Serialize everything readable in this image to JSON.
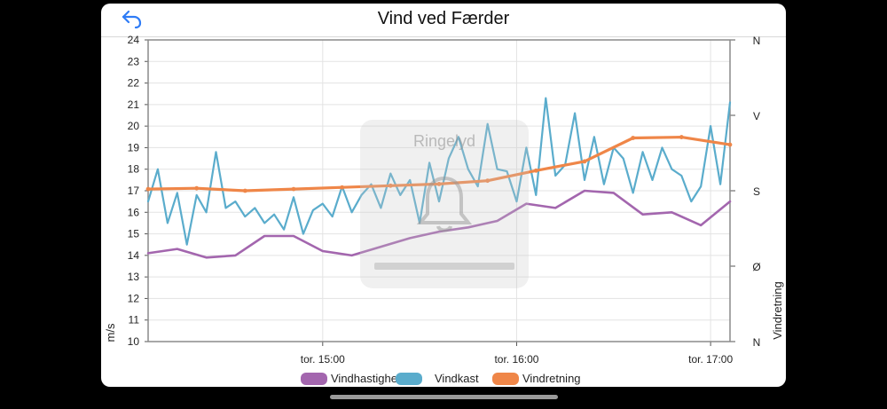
{
  "header": {
    "title": "Vind ved Færder"
  },
  "overlay": {
    "label": "Ringelyd"
  },
  "colors": {
    "speed": "#a366ae",
    "gust": "#5aaccc",
    "direction": "#ef8648",
    "grid": "#e3e3e3",
    "axis": "#555555"
  },
  "chart_data": {
    "type": "line",
    "title": "Vind ved Færder",
    "ylabel": "m/s",
    "ylabel_right": "Vindretning",
    "ylim": [
      10,
      24
    ],
    "yticks": [
      "10",
      "11",
      "12",
      "13",
      "14",
      "15",
      "16",
      "17",
      "18",
      "19",
      "20",
      "21",
      "22",
      "23",
      "24"
    ],
    "right_ticks": [
      "N",
      "Ø",
      "S",
      "V",
      "N"
    ],
    "right_lim": [
      0,
      360
    ],
    "xlim": [
      "14:06",
      "17:06"
    ],
    "xticks": [
      {
        "time": "15:00",
        "label": "tor. 15:00"
      },
      {
        "time": "16:00",
        "label": "tor. 16:00"
      },
      {
        "time": "17:00",
        "label": "tor. 17:00"
      }
    ],
    "legend": {
      "placement": "bottom-center"
    },
    "series": [
      {
        "name": "Vindhastighet",
        "axis": "left",
        "x": [
          "14:06",
          "14:15",
          "14:24",
          "14:33",
          "14:42",
          "14:51",
          "15:00",
          "15:09",
          "15:18",
          "15:27",
          "15:36",
          "15:45",
          "15:54",
          "16:03",
          "16:12",
          "16:21",
          "16:30",
          "16:39",
          "16:48",
          "16:57",
          "17:06"
        ],
        "values": [
          14.1,
          14.3,
          13.9,
          14.0,
          14.9,
          14.9,
          14.2,
          14.0,
          14.4,
          14.8,
          15.1,
          15.3,
          15.6,
          16.4,
          16.2,
          17.0,
          16.9,
          15.9,
          16.0,
          15.4,
          16.5
        ]
      },
      {
        "name": "Vindkast",
        "axis": "left",
        "x": [
          "14:06",
          "14:09",
          "14:12",
          "14:15",
          "14:18",
          "14:21",
          "14:24",
          "14:27",
          "14:30",
          "14:33",
          "14:36",
          "14:39",
          "14:42",
          "14:45",
          "14:48",
          "14:51",
          "14:54",
          "14:57",
          "15:00",
          "15:03",
          "15:06",
          "15:09",
          "15:12",
          "15:15",
          "15:18",
          "15:21",
          "15:24",
          "15:27",
          "15:30",
          "15:33",
          "15:36",
          "15:39",
          "15:42",
          "15:45",
          "15:48",
          "15:51",
          "15:54",
          "15:57",
          "16:00",
          "16:03",
          "16:06",
          "16:09",
          "16:12",
          "16:15",
          "16:18",
          "16:21",
          "16:24",
          "16:27",
          "16:30",
          "16:33",
          "16:36",
          "16:39",
          "16:42",
          "16:45",
          "16:48",
          "16:51",
          "16:54",
          "16:57",
          "17:00",
          "17:03",
          "17:06"
        ],
        "values": [
          16.5,
          18.0,
          15.5,
          16.9,
          14.5,
          16.8,
          16.0,
          18.8,
          16.2,
          16.5,
          15.8,
          16.2,
          15.5,
          15.9,
          15.2,
          16.7,
          15.0,
          16.1,
          16.4,
          15.8,
          17.2,
          16.0,
          16.8,
          17.3,
          16.2,
          17.8,
          16.8,
          17.5,
          15.5,
          18.3,
          16.5,
          18.5,
          19.5,
          18.0,
          17.2,
          20.1,
          18.0,
          17.9,
          16.5,
          19.0,
          16.8,
          21.3,
          17.7,
          18.2,
          20.6,
          17.5,
          19.5,
          17.3,
          19.0,
          18.5,
          16.9,
          18.8,
          17.5,
          19.0,
          18.0,
          17.7,
          16.5,
          17.2,
          20.0,
          17.3,
          21.1
        ]
      },
      {
        "name": "Vindretning",
        "axis": "right",
        "x": [
          "14:06",
          "14:21",
          "14:36",
          "14:51",
          "15:06",
          "15:21",
          "15:36",
          "15:51",
          "16:06",
          "16:21",
          "16:36",
          "16:51",
          "17:06"
        ],
        "values": [
          182,
          183,
          180,
          182,
          184,
          186,
          188,
          192,
          204,
          215,
          243,
          244,
          235
        ]
      }
    ]
  }
}
